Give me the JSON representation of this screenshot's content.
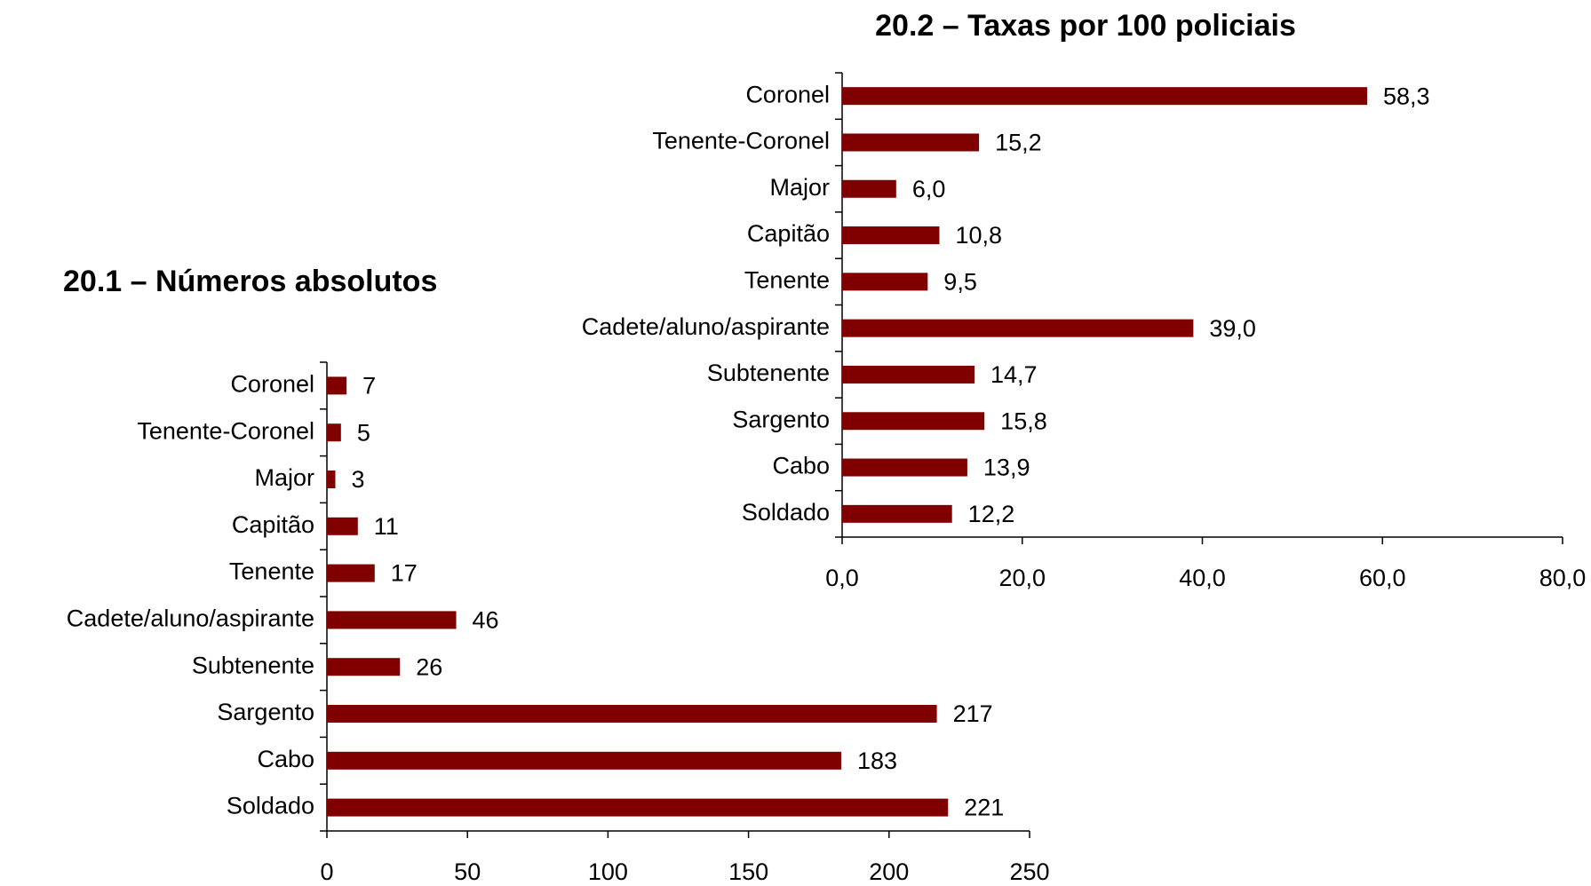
{
  "chart_data": [
    {
      "type": "barh",
      "title": "20.1 – Números absolutos",
      "categories": [
        "Coronel",
        "Tenente-Coronel",
        "Major",
        "Capitão",
        "Tenente",
        "Cadete/aluno/aspirante",
        "Subtenente",
        "Sargento",
        "Cabo",
        "Soldado"
      ],
      "values": [
        7,
        5,
        3,
        11,
        17,
        46,
        26,
        217,
        183,
        221
      ],
      "color": "#800000",
      "xlim": [
        0,
        250
      ],
      "xticks": [
        0,
        50,
        100,
        150,
        200,
        250
      ]
    },
    {
      "type": "barh",
      "title": "20.2 – Taxas por 100 policiais",
      "categories": [
        "Coronel",
        "Tenente-Coronel",
        "Major",
        "Capitão",
        "Tenente",
        "Cadete/aluno/aspirante",
        "Subtenente",
        "Sargento",
        "Cabo",
        "Soldado"
      ],
      "values": [
        58.3,
        15.2,
        6.0,
        10.8,
        9.5,
        39.0,
        14.7,
        15.8,
        13.9,
        12.2
      ],
      "value_labels": [
        "58,3",
        "15,2",
        "6,0",
        "10,8",
        "9,5",
        "39,0",
        "14,7",
        "15,8",
        "13,9",
        "12,2"
      ],
      "color": "#800000",
      "xlim": [
        0,
        80
      ],
      "xticks": [
        {
          "value": 0,
          "label": "0,0"
        },
        {
          "value": 20,
          "label": "20,0"
        },
        {
          "value": 40,
          "label": "40,0"
        },
        {
          "value": 60,
          "label": "60,0"
        },
        {
          "value": 80,
          "label": "80,0"
        }
      ]
    }
  ]
}
